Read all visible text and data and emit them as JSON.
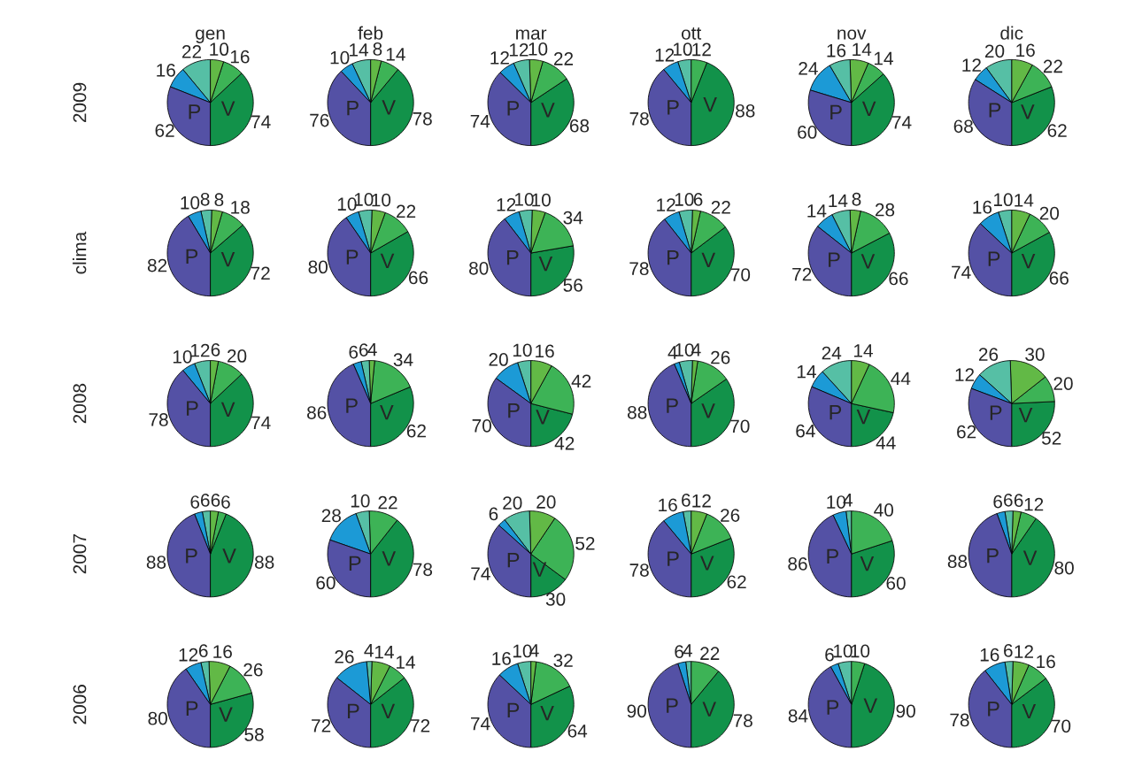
{
  "chart_data": [
    {
      "type": "pie",
      "title": "gen",
      "ylabel": "2009",
      "categories": [
        "V",
        null,
        null,
        null,
        null,
        "P"
      ],
      "values": [
        74,
        16,
        10,
        22,
        16,
        62
      ],
      "colors": [
        "#12924a",
        "#3db356",
        "#62b946",
        "#56bfa5",
        "#1c9ad6",
        "#5451a5"
      ],
      "data_labels": true
    },
    {
      "type": "pie",
      "title": "feb",
      "categories": [
        "V",
        null,
        null,
        null,
        null,
        "P"
      ],
      "values": [
        78,
        14,
        8,
        14,
        10,
        76
      ],
      "colors": [
        "#12924a",
        "#3db356",
        "#62b946",
        "#56bfa5",
        "#1c9ad6",
        "#5451a5"
      ],
      "data_labels": true
    },
    {
      "type": "pie",
      "title": "mar",
      "categories": [
        "V",
        null,
        null,
        null,
        null,
        "P"
      ],
      "values": [
        68,
        22,
        10,
        12,
        12,
        74
      ],
      "colors": [
        "#12924a",
        "#3db356",
        "#62b946",
        "#56bfa5",
        "#1c9ad6",
        "#5451a5"
      ],
      "data_labels": true
    },
    {
      "type": "pie",
      "title": "ott",
      "categories": [
        "V",
        null,
        null,
        null,
        null,
        "P"
      ],
      "values": [
        88,
        12,
        null,
        10,
        12,
        78
      ],
      "colors": [
        "#12924a",
        "#3db356",
        "#62b946",
        "#56bfa5",
        "#1c9ad6",
        "#5451a5"
      ],
      "data_labels": true
    },
    {
      "type": "pie",
      "title": "nov",
      "categories": [
        "V",
        null,
        null,
        null,
        null,
        "P"
      ],
      "values": [
        74,
        14,
        14,
        16,
        24,
        60
      ],
      "colors": [
        "#12924a",
        "#3db356",
        "#62b946",
        "#56bfa5",
        "#1c9ad6",
        "#5451a5"
      ],
      "data_labels": true
    },
    {
      "type": "pie",
      "title": "dic",
      "categories": [
        "V",
        null,
        null,
        null,
        null,
        "P"
      ],
      "values": [
        62,
        22,
        16,
        20,
        12,
        68
      ],
      "colors": [
        "#12924a",
        "#3db356",
        "#62b946",
        "#56bfa5",
        "#1c9ad6",
        "#5451a5"
      ],
      "data_labels": true
    },
    {
      "type": "pie",
      "ylabel": "clima",
      "categories": [
        "V",
        null,
        null,
        null,
        null,
        "P"
      ],
      "values": [
        72,
        18,
        8,
        8,
        10,
        82
      ],
      "colors": [
        "#12924a",
        "#3db356",
        "#62b946",
        "#56bfa5",
        "#1c9ad6",
        "#5451a5"
      ],
      "data_labels": true
    },
    {
      "type": "pie",
      "categories": [
        "V",
        null,
        null,
        null,
        null,
        "P"
      ],
      "values": [
        66,
        22,
        10,
        10,
        10,
        80
      ],
      "colors": [
        "#12924a",
        "#3db356",
        "#62b946",
        "#56bfa5",
        "#1c9ad6",
        "#5451a5"
      ],
      "data_labels": true
    },
    {
      "type": "pie",
      "categories": [
        "V",
        null,
        null,
        null,
        null,
        "P"
      ],
      "values": [
        56,
        34,
        10,
        10,
        12,
        80
      ],
      "colors": [
        "#12924a",
        "#3db356",
        "#62b946",
        "#56bfa5",
        "#1c9ad6",
        "#5451a5"
      ],
      "data_labels": true
    },
    {
      "type": "pie",
      "categories": [
        "V",
        null,
        null,
        null,
        null,
        "P"
      ],
      "values": [
        70,
        22,
        6,
        10,
        12,
        78
      ],
      "colors": [
        "#12924a",
        "#3db356",
        "#62b946",
        "#56bfa5",
        "#1c9ad6",
        "#5451a5"
      ],
      "data_labels": true
    },
    {
      "type": "pie",
      "categories": [
        "V",
        null,
        null,
        null,
        null,
        "P"
      ],
      "values": [
        66,
        28,
        8,
        14,
        14,
        72
      ],
      "colors": [
        "#12924a",
        "#3db356",
        "#62b946",
        "#56bfa5",
        "#1c9ad6",
        "#5451a5"
      ],
      "data_labels": true
    },
    {
      "type": "pie",
      "categories": [
        "V",
        null,
        null,
        null,
        null,
        "P"
      ],
      "values": [
        66,
        20,
        14,
        10,
        16,
        74
      ],
      "colors": [
        "#12924a",
        "#3db356",
        "#62b946",
        "#56bfa5",
        "#1c9ad6",
        "#5451a5"
      ],
      "data_labels": true
    },
    {
      "type": "pie",
      "ylabel": "2008",
      "categories": [
        "V",
        null,
        null,
        null,
        null,
        "P"
      ],
      "values": [
        74,
        20,
        6,
        12,
        10,
        78
      ],
      "colors": [
        "#12924a",
        "#3db356",
        "#62b946",
        "#56bfa5",
        "#1c9ad6",
        "#5451a5"
      ],
      "data_labels": true
    },
    {
      "type": "pie",
      "categories": [
        "V",
        null,
        null,
        null,
        null,
        "P"
      ],
      "values": [
        62,
        34,
        4,
        6,
        6,
        86
      ],
      "colors": [
        "#12924a",
        "#3db356",
        "#62b946",
        "#56bfa5",
        "#1c9ad6",
        "#5451a5"
      ],
      "data_labels": true
    },
    {
      "type": "pie",
      "categories": [
        "V",
        null,
        null,
        null,
        null,
        "P"
      ],
      "values": [
        42,
        42,
        16,
        10,
        20,
        70
      ],
      "colors": [
        "#12924a",
        "#3db356",
        "#62b946",
        "#56bfa5",
        "#1c9ad6",
        "#5451a5"
      ],
      "data_labels": true
    },
    {
      "type": "pie",
      "categories": [
        "V",
        null,
        null,
        null,
        null,
        "P"
      ],
      "values": [
        70,
        26,
        4,
        10,
        4,
        88
      ],
      "colors": [
        "#12924a",
        "#3db356",
        "#62b946",
        "#56bfa5",
        "#1c9ad6",
        "#5451a5"
      ],
      "data_labels": true
    },
    {
      "type": "pie",
      "categories": [
        "V",
        null,
        null,
        null,
        null,
        "P"
      ],
      "values": [
        44,
        44,
        14,
        24,
        14,
        64
      ],
      "colors": [
        "#12924a",
        "#3db356",
        "#62b946",
        "#56bfa5",
        "#1c9ad6",
        "#5451a5"
      ],
      "data_labels": true
    },
    {
      "type": "pie",
      "categories": [
        "V",
        null,
        null,
        null,
        null,
        "P"
      ],
      "values": [
        52,
        20,
        30,
        26,
        12,
        62
      ],
      "colors": [
        "#12924a",
        "#3db356",
        "#62b946",
        "#56bfa5",
        "#1c9ad6",
        "#5451a5"
      ],
      "data_labels": true
    },
    {
      "type": "pie",
      "ylabel": "2007",
      "categories": [
        "V",
        null,
        null,
        null,
        null,
        "P"
      ],
      "values": [
        88,
        6,
        6,
        6,
        6,
        88
      ],
      "colors": [
        "#12924a",
        "#3db356",
        "#62b946",
        "#56bfa5",
        "#1c9ad6",
        "#5451a5"
      ],
      "data_labels": true
    },
    {
      "type": "pie",
      "categories": [
        "V",
        null,
        null,
        null,
        null,
        "P"
      ],
      "values": [
        78,
        22,
        null,
        10,
        28,
        60
      ],
      "colors": [
        "#12924a",
        "#3db356",
        "#62b946",
        "#56bfa5",
        "#1c9ad6",
        "#5451a5"
      ],
      "data_labels": true
    },
    {
      "type": "pie",
      "categories": [
        "V",
        null,
        null,
        null,
        null,
        "P"
      ],
      "values": [
        30,
        52,
        20,
        20,
        6,
        74
      ],
      "colors": [
        "#12924a",
        "#3db356",
        "#62b946",
        "#56bfa5",
        "#1c9ad6",
        "#5451a5"
      ],
      "data_labels": true
    },
    {
      "type": "pie",
      "categories": [
        "V",
        null,
        null,
        null,
        null,
        "P"
      ],
      "values": [
        62,
        26,
        12,
        6,
        16,
        78
      ],
      "colors": [
        "#12924a",
        "#3db356",
        "#62b946",
        "#56bfa5",
        "#1c9ad6",
        "#5451a5"
      ],
      "data_labels": true
    },
    {
      "type": "pie",
      "categories": [
        "V",
        null,
        null,
        null,
        null,
        "P"
      ],
      "values": [
        60,
        40,
        null,
        4,
        10,
        86
      ],
      "colors": [
        "#12924a",
        "#3db356",
        "#62b946",
        "#56bfa5",
        "#1c9ad6",
        "#5451a5"
      ],
      "data_labels": true
    },
    {
      "type": "pie",
      "categories": [
        "V",
        null,
        null,
        null,
        null,
        "P"
      ],
      "values": [
        80,
        12,
        6,
        6,
        6,
        88
      ],
      "colors": [
        "#12924a",
        "#3db356",
        "#62b946",
        "#56bfa5",
        "#1c9ad6",
        "#5451a5"
      ],
      "data_labels": true
    },
    {
      "type": "pie",
      "ylabel": "2006",
      "categories": [
        "V",
        null,
        null,
        null,
        null,
        "P"
      ],
      "values": [
        58,
        26,
        16,
        6,
        12,
        80
      ],
      "colors": [
        "#12924a",
        "#3db356",
        "#62b946",
        "#56bfa5",
        "#1c9ad6",
        "#5451a5"
      ],
      "data_labels": true
    },
    {
      "type": "pie",
      "categories": [
        "V",
        null,
        null,
        null,
        null,
        "P"
      ],
      "values": [
        72,
        14,
        14,
        4,
        26,
        72
      ],
      "colors": [
        "#12924a",
        "#3db356",
        "#62b946",
        "#56bfa5",
        "#1c9ad6",
        "#5451a5"
      ],
      "data_labels": true
    },
    {
      "type": "pie",
      "categories": [
        "V",
        null,
        null,
        null,
        null,
        "P"
      ],
      "values": [
        64,
        32,
        4,
        10,
        16,
        74
      ],
      "colors": [
        "#12924a",
        "#3db356",
        "#62b946",
        "#56bfa5",
        "#1c9ad6",
        "#5451a5"
      ],
      "data_labels": true
    },
    {
      "type": "pie",
      "categories": [
        "V",
        null,
        null,
        null,
        null,
        "P"
      ],
      "values": [
        78,
        22,
        null,
        4,
        6,
        90
      ],
      "colors": [
        "#12924a",
        "#3db356",
        "#62b946",
        "#56bfa5",
        "#1c9ad6",
        "#5451a5"
      ],
      "data_labels": true
    },
    {
      "type": "pie",
      "categories": [
        "V",
        null,
        null,
        null,
        null,
        "P"
      ],
      "values": [
        90,
        10,
        null,
        10,
        6,
        84
      ],
      "colors": [
        "#12924a",
        "#3db356",
        "#62b946",
        "#56bfa5",
        "#1c9ad6",
        "#5451a5"
      ],
      "data_labels": true
    },
    {
      "type": "pie",
      "categories": [
        "V",
        null,
        null,
        null,
        null,
        "P"
      ],
      "values": [
        70,
        16,
        12,
        6,
        16,
        78
      ],
      "colors": [
        "#12924a",
        "#3db356",
        "#62b946",
        "#56bfa5",
        "#1c9ad6",
        "#5451a5"
      ],
      "data_labels": true
    }
  ]
}
